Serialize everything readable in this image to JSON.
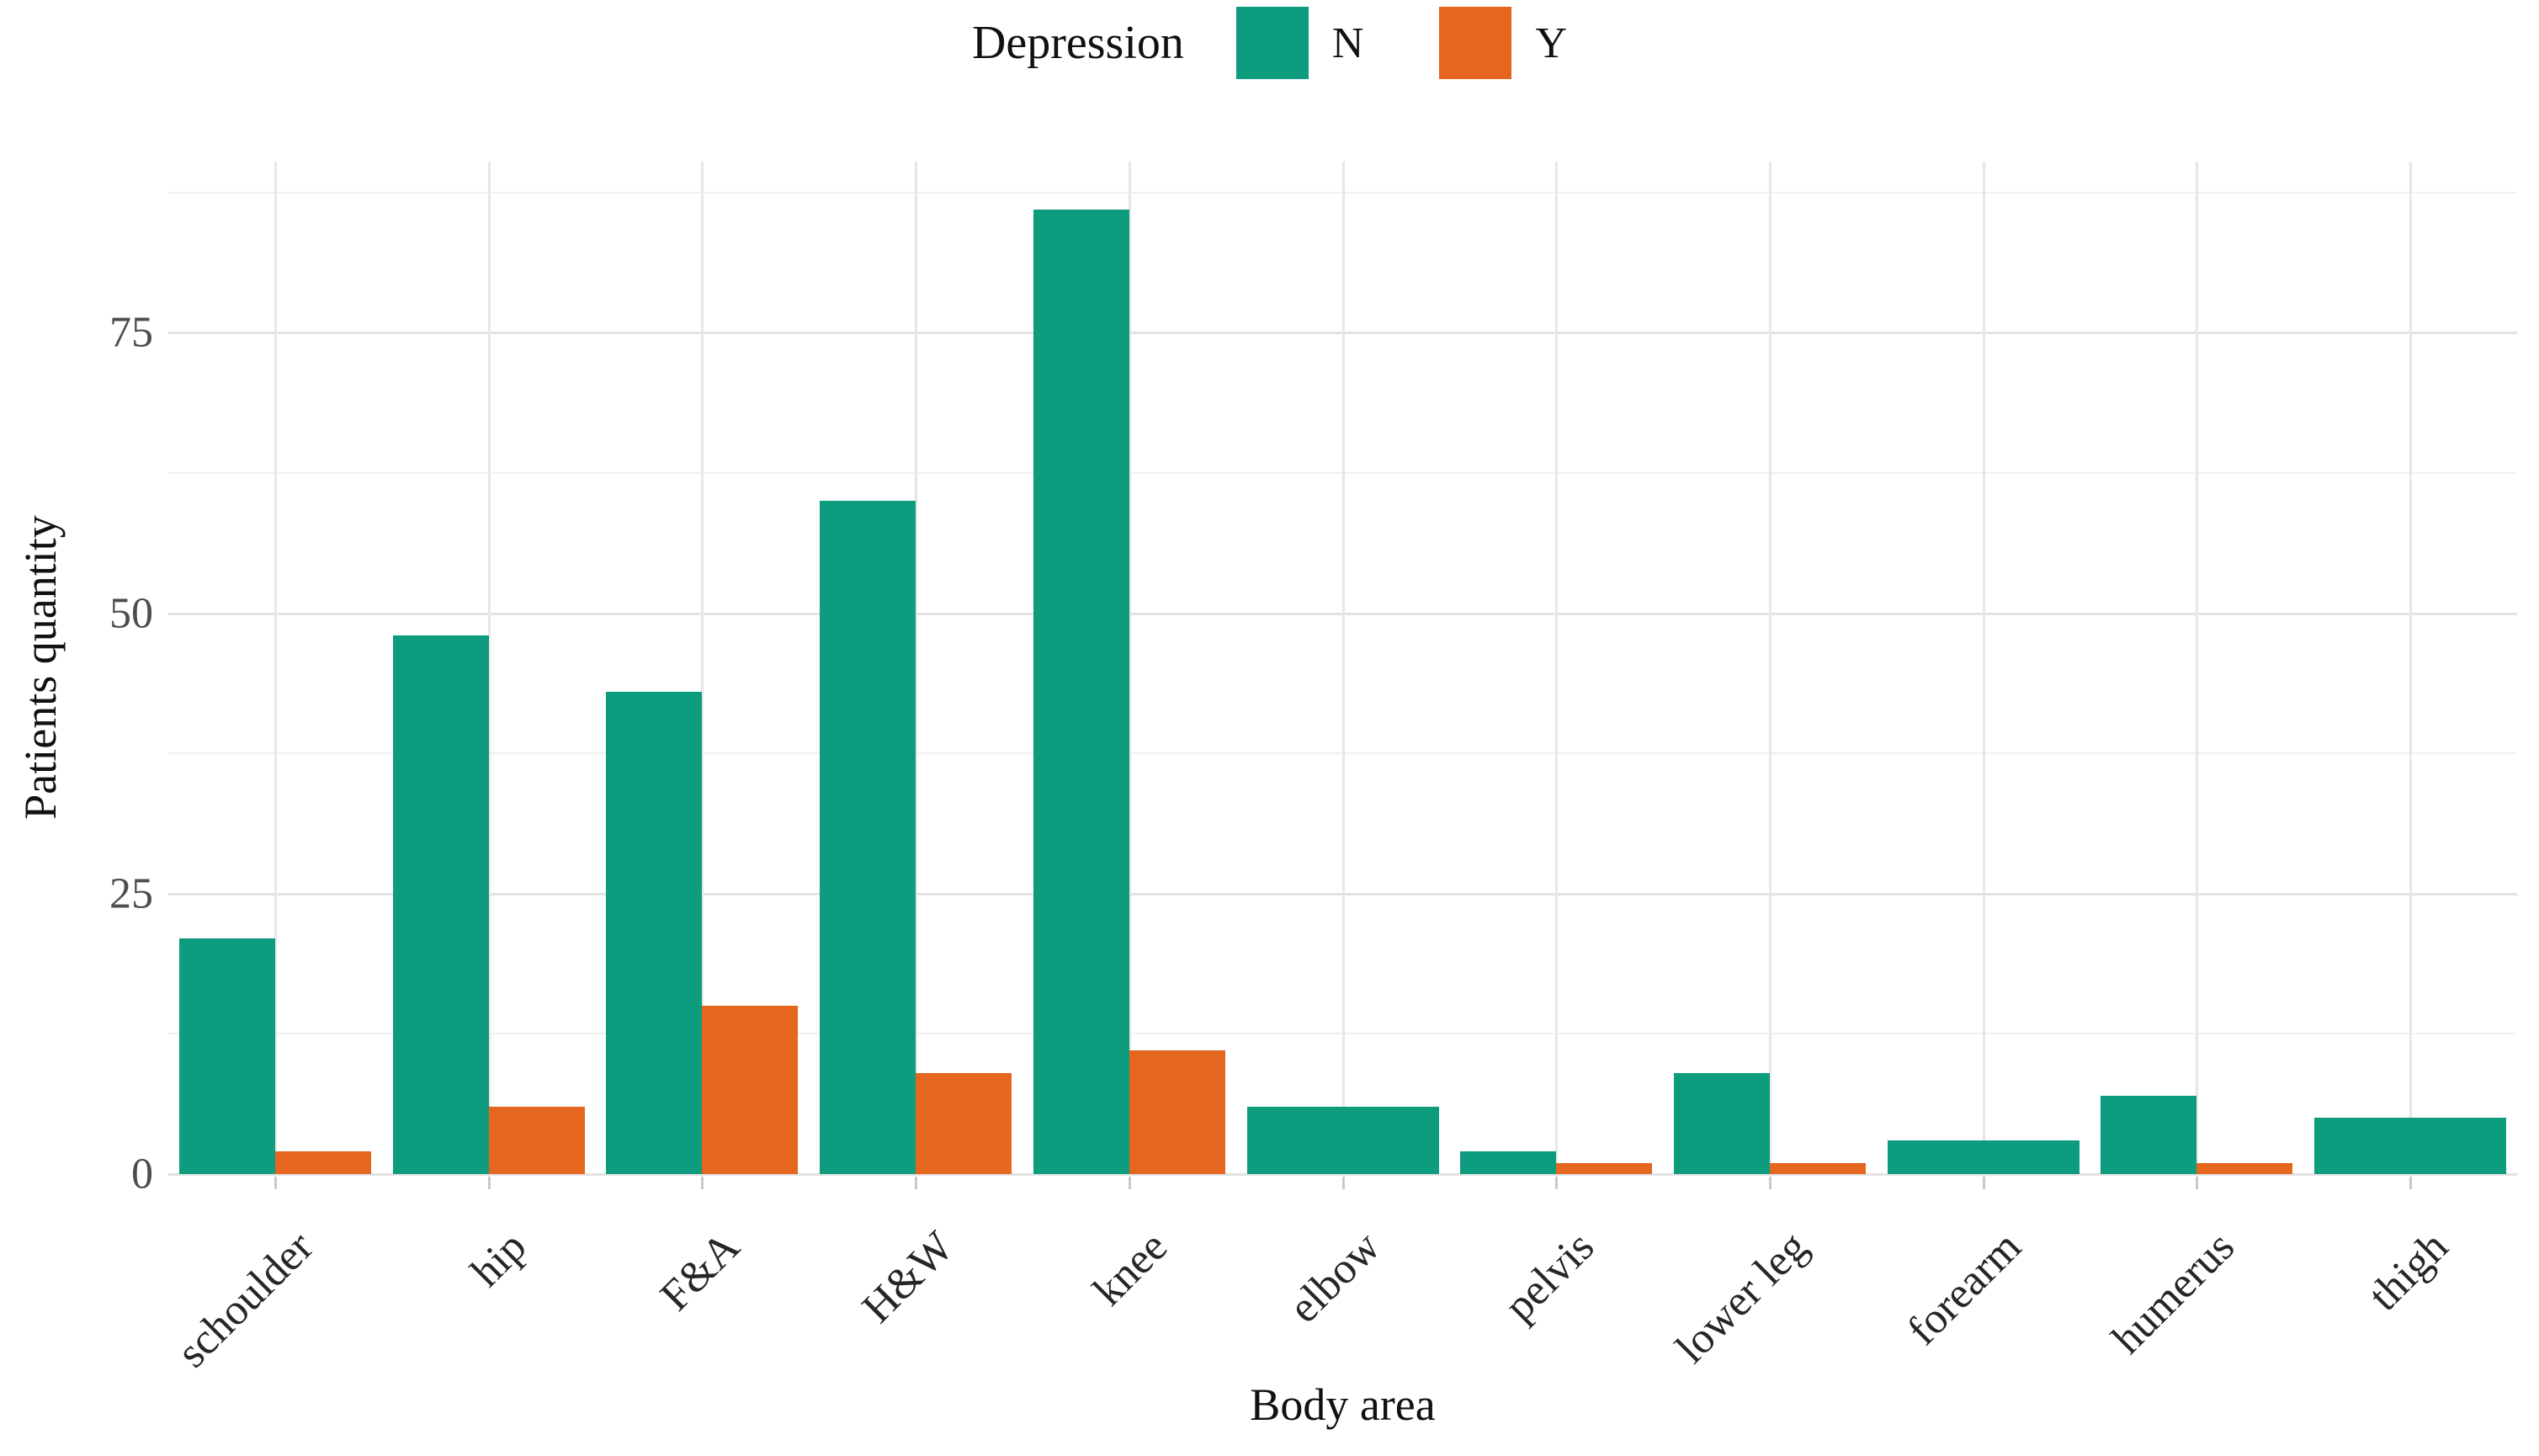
{
  "legend": {
    "title": "Depression",
    "items": [
      {
        "label": "N",
        "color": "#0e9c7e"
      },
      {
        "label": "Y",
        "color": "#e4661f"
      }
    ]
  },
  "chart_data": {
    "type": "bar",
    "title": "",
    "xlabel": "Body area",
    "ylabel": "Patients quantity",
    "categories": [
      "schoulder",
      "hip",
      "F&A",
      "H&W",
      "knee",
      "elbow",
      "pelvis",
      "lower leg",
      "forearm",
      "humerus",
      "thigh"
    ],
    "series": [
      {
        "name": "N",
        "color": "#0e9c7e",
        "values": [
          21,
          48,
          43,
          60,
          86,
          6,
          2,
          9,
          3,
          7,
          5
        ]
      },
      {
        "name": "Y",
        "color": "#e4661f",
        "values": [
          2,
          6,
          15,
          9,
          11,
          0,
          1,
          1,
          0,
          1,
          0
        ]
      }
    ],
    "yticks": [
      0,
      25,
      50,
      75
    ],
    "yticks_minor": [
      12.5,
      37.5,
      62.5,
      87.5
    ],
    "ylim": [
      0,
      90
    ],
    "grid": "horizontal major+minor, vertical major at category centers",
    "legend_position": "top-center",
    "colors": {
      "background": "#ffffff",
      "grid_major": "#e2e2e2",
      "grid_minor": "#f0f0f0",
      "axis_text": "#4d4d4d",
      "title_text": "#111111"
    }
  }
}
